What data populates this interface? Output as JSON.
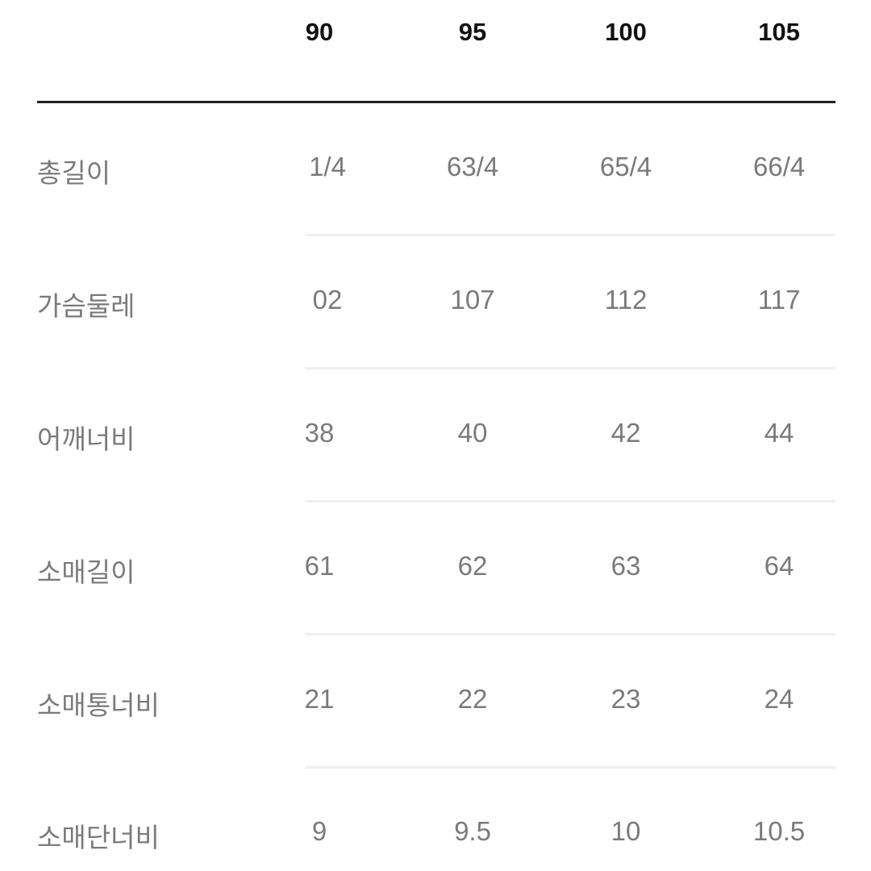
{
  "sizes": [
    "90",
    "95",
    "100",
    "105"
  ],
  "rows": [
    {
      "label": "총길이",
      "values": [
        "1/4",
        "63/4",
        "65/4",
        "66/4"
      ]
    },
    {
      "label": "가슴둘레",
      "values": [
        "02",
        "107",
        "112",
        "117"
      ]
    },
    {
      "label": "어깨너비",
      "values": [
        "38",
        "40",
        "42",
        "44"
      ]
    },
    {
      "label": "소매길이",
      "values": [
        "61",
        "62",
        "63",
        "64"
      ]
    },
    {
      "label": "소매통너비",
      "values": [
        "21",
        "22",
        "23",
        "24"
      ]
    },
    {
      "label": "소매단너비",
      "values": [
        "9",
        "9.5",
        "10",
        "10.5"
      ]
    }
  ]
}
